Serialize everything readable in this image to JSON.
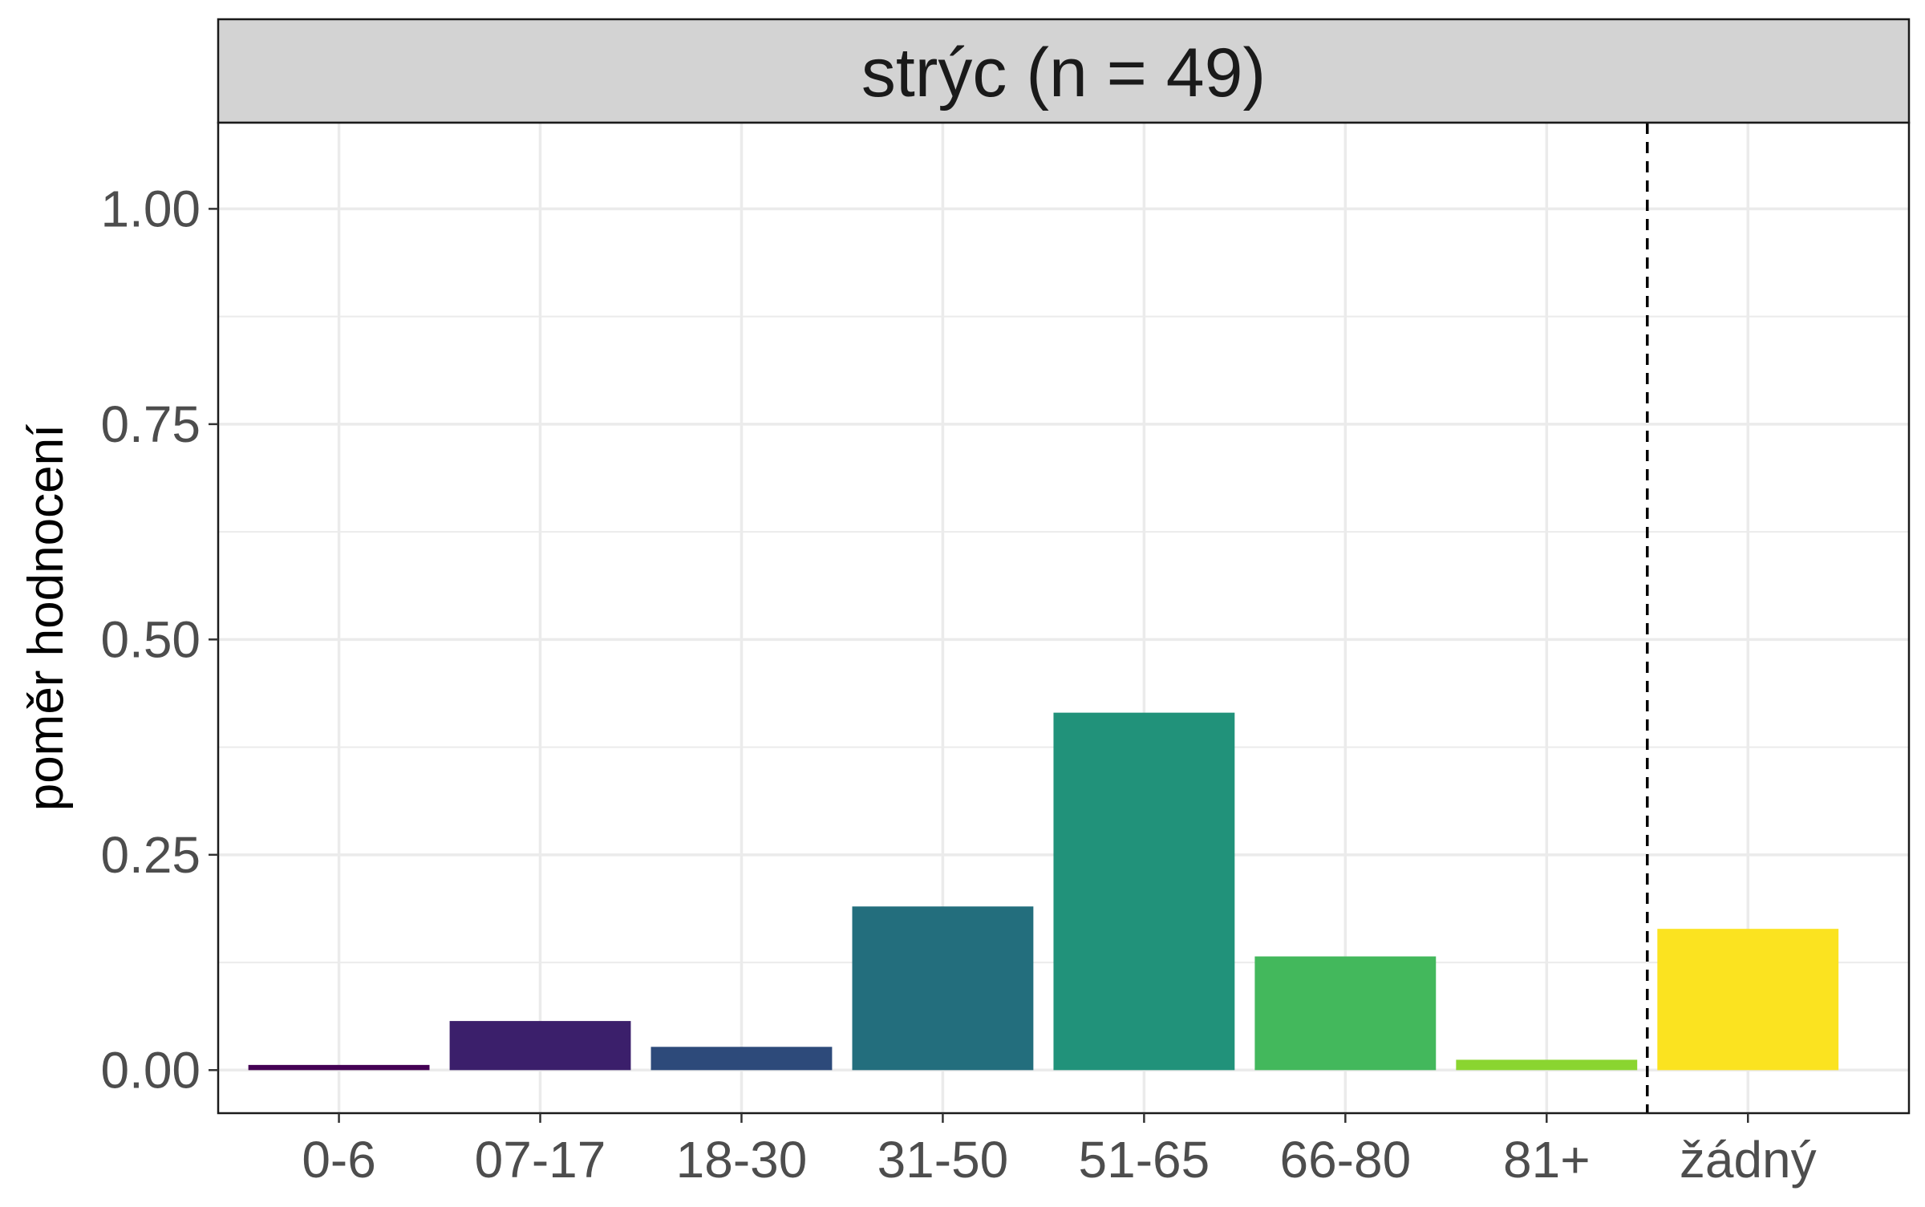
{
  "chart_data": {
    "type": "bar",
    "facet_title": "strýc (n = 49)",
    "ylabel": "poměr hodnocení",
    "xlabel": "",
    "categories": [
      "0-6",
      "07-17",
      "18-30",
      "31-50",
      "51-65",
      "66-80",
      "81+",
      "žádný"
    ],
    "values": [
      0.006,
      0.057,
      0.027,
      0.19,
      0.415,
      0.132,
      0.012,
      0.164
    ],
    "colors": [
      "#440154",
      "#3b1f6b",
      "#2d4a7a",
      "#236e7d",
      "#21927a",
      "#43b85c",
      "#8ad530",
      "#fbe320"
    ],
    "ylim": [
      -0.05,
      1.1
    ],
    "yticks": [
      0,
      0.25,
      0.5,
      0.75,
      1
    ],
    "ytick_labels": [
      "0.00",
      "0.25",
      "0.50",
      "0.75",
      "1.00"
    ],
    "separator_after_category": "81+",
    "separator_style": "dashed",
    "grid": true,
    "legend": "none"
  }
}
